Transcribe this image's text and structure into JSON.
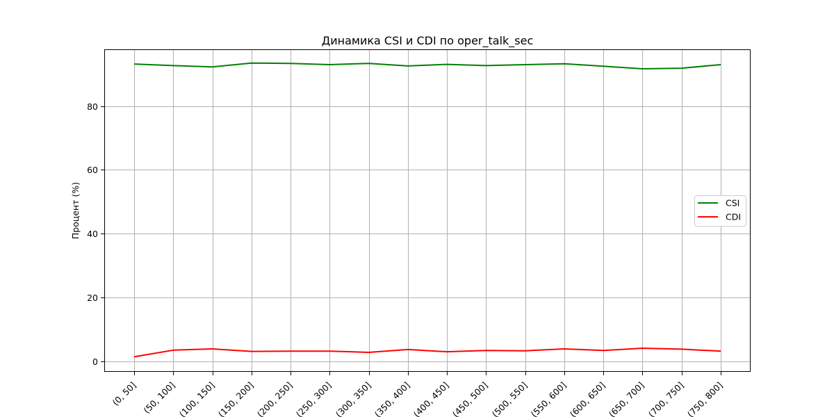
{
  "chart_data": {
    "type": "line",
    "title": "Динамика CSI и CDI по oper_talk_sec",
    "xlabel": "",
    "ylabel": "Процент (%)",
    "categories": [
      "(0, 50]",
      "(50, 100]",
      "(100, 150]",
      "(150, 200]",
      "(200, 250]",
      "(250, 300]",
      "(300, 350]",
      "(350, 400]",
      "(400, 450]",
      "(450, 500]",
      "(500, 550]",
      "(550, 600]",
      "(600, 650]",
      "(650, 700]",
      "(700, 750]",
      "(750, 800]"
    ],
    "ylim": [
      -3.3,
      97.8
    ],
    "yticks": [
      0,
      20,
      40,
      60,
      80
    ],
    "grid": true,
    "legend_position": "center-right",
    "series": [
      {
        "name": "CSI",
        "color": "#008000",
        "values": [
          93.2,
          92.7,
          92.3,
          93.5,
          93.4,
          93.0,
          93.4,
          92.6,
          93.1,
          92.7,
          93.0,
          93.3,
          92.5,
          91.7,
          91.9,
          93.0
        ]
      },
      {
        "name": "CDI",
        "color": "#ff0000",
        "values": [
          1.4,
          3.5,
          3.9,
          3.1,
          3.2,
          3.2,
          2.8,
          3.7,
          3.0,
          3.4,
          3.3,
          3.9,
          3.4,
          4.1,
          3.8,
          3.2
        ]
      }
    ]
  }
}
